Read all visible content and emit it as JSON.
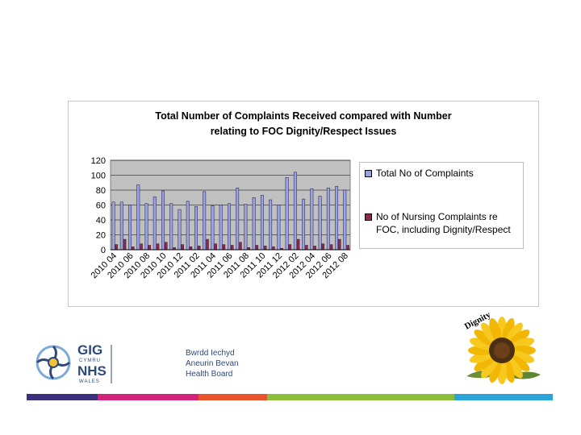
{
  "chart_data": {
    "type": "bar",
    "title_lines": [
      "Total Number of Complaints Received compared with Number",
      "relating to FOC Dignity/Respect Issues"
    ],
    "categories": [
      "2010 04",
      "2010 05",
      "2010 06",
      "2010 07",
      "2010 08",
      "2010 09",
      "2010 10",
      "2010 11",
      "2010 12",
      "2011 01",
      "2011 02",
      "2011 03",
      "2011 04",
      "2011 05",
      "2011 06",
      "2011 07",
      "2011 08",
      "2011 09",
      "2011 10",
      "2011 11",
      "2011 12",
      "2012 01",
      "2012 02",
      "2012 03",
      "2012 04",
      "2012 05",
      "2012 06",
      "2012 07",
      "2012 08"
    ],
    "tick_labels": [
      "2010 04",
      "2010 06",
      "2010 08",
      "2010 10",
      "2010 12",
      "2011 02",
      "2011 04",
      "2011 06",
      "2011 08",
      "2011 10",
      "2011 12",
      "2012 02",
      "2012 04",
      "2012 06",
      "2012 08"
    ],
    "series": [
      {
        "name": "Total No of Complaints",
        "color": "#9aa3e0",
        "values": [
          64,
          64,
          60,
          87,
          62,
          71,
          79,
          62,
          54,
          65,
          58,
          78,
          59,
          60,
          62,
          83,
          61,
          70,
          73,
          67,
          60,
          97,
          104,
          68,
          82,
          72,
          83,
          85,
          80
        ]
      },
      {
        "name": "No of Nursing Complaints re FOC, including Dignity/Respect",
        "color": "#8b2a4e",
        "values": [
          7,
          14,
          4,
          8,
          6,
          8,
          10,
          3,
          7,
          4,
          5,
          14,
          8,
          7,
          6,
          10,
          3,
          6,
          5,
          4,
          2,
          7,
          14,
          6,
          5,
          8,
          7,
          14,
          6
        ]
      }
    ],
    "yticks": [
      0,
      20,
      40,
      60,
      80,
      100,
      120
    ],
    "ylim": [
      0,
      120
    ],
    "plot_background": "#c0c0c0",
    "legend": [
      "Total No of Complaints",
      "No of Nursing Complaints re FOC, including Dignity/Respect"
    ]
  },
  "branding": {
    "logo_text_lines": [
      "Bwrdd Iechyd",
      "Aneurin Bevan",
      "Health Board"
    ],
    "logo_gig": "GIG",
    "logo_cymru": "CYMRU",
    "logo_nhs": "NHS",
    "logo_wales": "WALES",
    "sunflower_text": "Dignity"
  },
  "stripe_colors": [
    "#3b2f7e",
    "#d4237a",
    "#e8542a",
    "#8bbd3c",
    "#2aa3d8"
  ]
}
